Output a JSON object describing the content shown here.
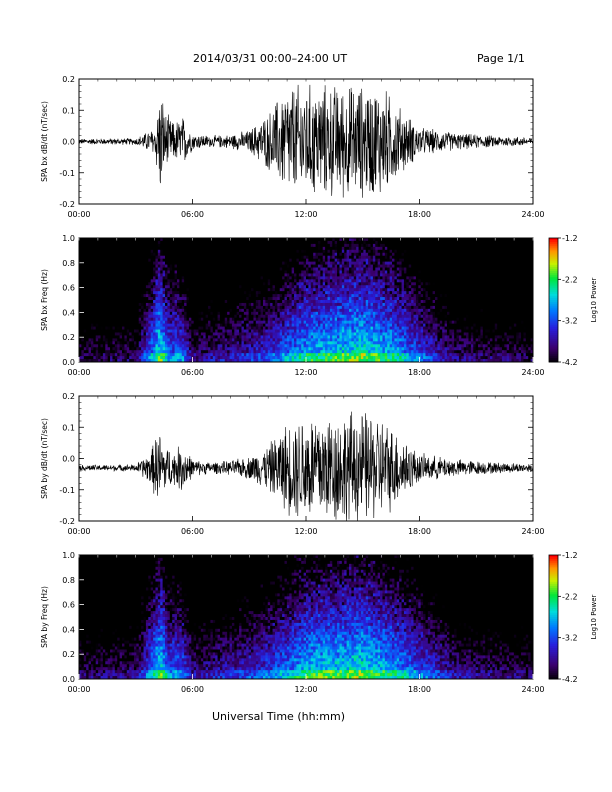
{
  "header": {
    "title": "2014/03/31   00:00–24:00 UT",
    "page": "Page 1/1"
  },
  "x_axis_title": "Universal Time (hh:mm)",
  "chart_data": [
    {
      "type": "line",
      "ylabel": "SPA bx dB/dt (nT/sec)",
      "xlim": [
        "00:00",
        "24:00"
      ],
      "ylim": [
        -0.2,
        0.2
      ],
      "x_ticks": [
        "00:00",
        "06:00",
        "12:00",
        "18:00",
        "24:00"
      ],
      "y_ticks": [
        "0.2",
        "0.1",
        "0.0",
        "-0.1",
        "-0.2"
      ],
      "envelope_hours": [
        0,
        3,
        4,
        4.3,
        4.6,
        5,
        5.5,
        6,
        7,
        8,
        9,
        10,
        11,
        12,
        13,
        14,
        15,
        16,
        17,
        18,
        20,
        22,
        24
      ],
      "envelope_amplitude": [
        0.01,
        0.012,
        0.05,
        0.2,
        0.1,
        0.07,
        0.09,
        0.03,
        0.02,
        0.025,
        0.04,
        0.1,
        0.2,
        0.2,
        0.2,
        0.2,
        0.2,
        0.2,
        0.12,
        0.05,
        0.03,
        0.02,
        0.015
      ],
      "offset": 0.0,
      "color": "#000000"
    },
    {
      "type": "heatmap",
      "ylabel": "SPA bx Freq (Hz)",
      "xlim": [
        "00:00",
        "24:00"
      ],
      "ylim": [
        0.0,
        1.0
      ],
      "x_ticks": [
        "00:00",
        "06:00",
        "12:00",
        "18:00",
        "24:00"
      ],
      "y_ticks": [
        "1.0",
        "0.8",
        "0.6",
        "0.4",
        "0.2",
        "0.0"
      ],
      "colorbar": {
        "label": "Log10 Power",
        "ticks": [
          "-1.2",
          "-2.2",
          "-3.2",
          "-4.2"
        ],
        "range": [
          -4.2,
          -1.2
        ]
      },
      "intensity_hours": [
        0,
        3,
        3.8,
        4.3,
        4.8,
        5.2,
        5.6,
        6,
        8,
        10,
        11,
        12,
        13,
        14,
        15,
        16,
        17,
        18,
        19,
        20,
        22,
        24
      ],
      "intensity_level": [
        -4.0,
        -3.9,
        -3.0,
        -2.4,
        -3.1,
        -3.0,
        -3.2,
        -3.8,
        -3.6,
        -3.3,
        -3.0,
        -2.7,
        -2.6,
        -2.5,
        -2.4,
        -2.6,
        -2.8,
        -3.2,
        -3.5,
        -3.8,
        -3.9,
        -4.0
      ]
    },
    {
      "type": "line",
      "ylabel": "SPA by dB/dt (nT/sec)",
      "xlim": [
        "00:00",
        "24:00"
      ],
      "ylim": [
        -0.2,
        0.2
      ],
      "x_ticks": [
        "00:00",
        "06:00",
        "12:00",
        "18:00",
        "24:00"
      ],
      "y_ticks": [
        "0.2",
        "0.1",
        "0.0",
        "-0.1",
        "-0.2"
      ],
      "envelope_hours": [
        0,
        3,
        3.8,
        4.2,
        4.6,
        5,
        5.5,
        6,
        7,
        8,
        9,
        10,
        11,
        12,
        13,
        14,
        15,
        16,
        17,
        18,
        20,
        22,
        24
      ],
      "envelope_amplitude": [
        0.01,
        0.012,
        0.06,
        0.14,
        0.08,
        0.06,
        0.09,
        0.03,
        0.02,
        0.025,
        0.04,
        0.08,
        0.16,
        0.2,
        0.2,
        0.2,
        0.2,
        0.18,
        0.12,
        0.05,
        0.03,
        0.02,
        0.015
      ],
      "offset": -0.03,
      "color": "#000000"
    },
    {
      "type": "heatmap",
      "ylabel": "SPA by Freq (Hz)",
      "xlim": [
        "00:00",
        "24:00"
      ],
      "ylim": [
        0.0,
        1.0
      ],
      "x_ticks": [
        "00:00",
        "06:00",
        "12:00",
        "18:00",
        "24:00"
      ],
      "y_ticks": [
        "1.0",
        "0.8",
        "0.6",
        "0.4",
        "0.2",
        "0.0"
      ],
      "colorbar": {
        "label": "Log10 Power",
        "ticks": [
          "-1.2",
          "-2.2",
          "-3.2",
          "-4.2"
        ],
        "range": [
          -4.2,
          -1.2
        ]
      },
      "intensity_hours": [
        0,
        3,
        3.8,
        4.3,
        4.8,
        5.2,
        5.6,
        6,
        8,
        10,
        11,
        12,
        13,
        14,
        15,
        16,
        17,
        18,
        19,
        20,
        22,
        24
      ],
      "intensity_level": [
        -3.9,
        -3.8,
        -3.0,
        -2.4,
        -3.1,
        -3.0,
        -3.2,
        -3.7,
        -3.5,
        -3.2,
        -2.9,
        -2.6,
        -2.5,
        -2.5,
        -2.4,
        -2.6,
        -2.8,
        -3.1,
        -3.4,
        -3.7,
        -3.8,
        -3.9
      ]
    }
  ]
}
